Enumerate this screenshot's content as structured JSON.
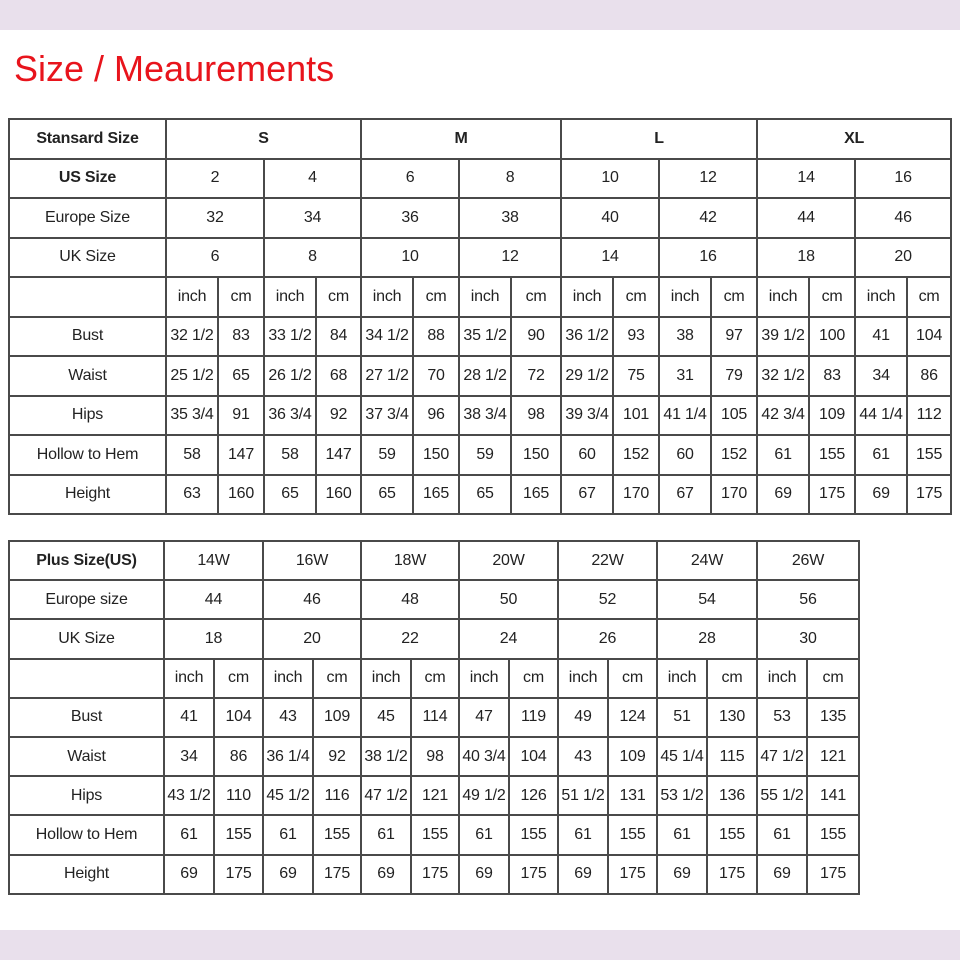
{
  "title": "Size / Meaurements",
  "standard_table": {
    "rows": [
      {
        "label": "Stansard Size",
        "bold": true,
        "span": 4,
        "cells": [
          "S",
          "M",
          "L",
          "XL"
        ]
      },
      {
        "label": "US Size",
        "bold": true,
        "span": 2,
        "cells": [
          "2",
          "4",
          "6",
          "8",
          "10",
          "12",
          "14",
          "16"
        ]
      },
      {
        "label": "Europe Size",
        "span": 2,
        "cells": [
          "32",
          "34",
          "36",
          "38",
          "40",
          "42",
          "44",
          "46"
        ]
      },
      {
        "label": "UK Size",
        "span": 2,
        "cells": [
          "6",
          "8",
          "10",
          "12",
          "14",
          "16",
          "18",
          "20"
        ]
      },
      {
        "label": "",
        "span": 1,
        "cells": [
          "inch",
          "cm",
          "inch",
          "cm",
          "inch",
          "cm",
          "inch",
          "cm",
          "inch",
          "cm",
          "inch",
          "cm",
          "inch",
          "cm",
          "inch",
          "cm"
        ]
      },
      {
        "label": "Bust",
        "span": 1,
        "cells": [
          "32 1/2",
          "83",
          "33 1/2",
          "84",
          "34 1/2",
          "88",
          "35 1/2",
          "90",
          "36 1/2",
          "93",
          "38",
          "97",
          "39 1/2",
          "100",
          "41",
          "104"
        ]
      },
      {
        "label": "Waist",
        "span": 1,
        "cells": [
          "25 1/2",
          "65",
          "26 1/2",
          "68",
          "27 1/2",
          "70",
          "28 1/2",
          "72",
          "29 1/2",
          "75",
          "31",
          "79",
          "32 1/2",
          "83",
          "34",
          "86"
        ]
      },
      {
        "label": "Hips",
        "span": 1,
        "cells": [
          "35 3/4",
          "91",
          "36 3/4",
          "92",
          "37 3/4",
          "96",
          "38 3/4",
          "98",
          "39 3/4",
          "101",
          "41 1/4",
          "105",
          "42 3/4",
          "109",
          "44 1/4",
          "112"
        ]
      },
      {
        "label": "Hollow to Hem",
        "span": 1,
        "cells": [
          "58",
          "147",
          "58",
          "147",
          "59",
          "150",
          "59",
          "150",
          "60",
          "152",
          "60",
          "152",
          "61",
          "155",
          "61",
          "155"
        ]
      },
      {
        "label": "Height",
        "span": 1,
        "cells": [
          "63",
          "160",
          "65",
          "160",
          "65",
          "165",
          "65",
          "165",
          "67",
          "170",
          "67",
          "170",
          "69",
          "175",
          "69",
          "175"
        ]
      }
    ]
  },
  "plus_table": {
    "rows": [
      {
        "label": "Plus Size(US)",
        "bold": true,
        "span": 2,
        "cells": [
          "14W",
          "16W",
          "18W",
          "20W",
          "22W",
          "24W",
          "26W"
        ]
      },
      {
        "label": "Europe size",
        "span": 2,
        "cells": [
          "44",
          "46",
          "48",
          "50",
          "52",
          "54",
          "56"
        ]
      },
      {
        "label": "UK Size",
        "span": 2,
        "cells": [
          "18",
          "20",
          "22",
          "24",
          "26",
          "28",
          "30"
        ]
      },
      {
        "label": "",
        "span": 1,
        "cells": [
          "inch",
          "cm",
          "inch",
          "cm",
          "inch",
          "cm",
          "inch",
          "cm",
          "inch",
          "cm",
          "inch",
          "cm",
          "inch",
          "cm"
        ]
      },
      {
        "label": "Bust",
        "span": 1,
        "cells": [
          "41",
          "104",
          "43",
          "109",
          "45",
          "114",
          "47",
          "119",
          "49",
          "124",
          "51",
          "130",
          "53",
          "135"
        ]
      },
      {
        "label": "Waist",
        "span": 1,
        "cells": [
          "34",
          "86",
          "36 1/4",
          "92",
          "38 1/2",
          "98",
          "40 3/4",
          "104",
          "43",
          "109",
          "45 1/4",
          "115",
          "47 1/2",
          "121"
        ]
      },
      {
        "label": "Hips",
        "span": 1,
        "cells": [
          "43 1/2",
          "110",
          "45 1/2",
          "116",
          "47 1/2",
          "121",
          "49 1/2",
          "126",
          "51 1/2",
          "131",
          "53 1/2",
          "136",
          "55 1/2",
          "141"
        ]
      },
      {
        "label": "Hollow to Hem",
        "span": 1,
        "cells": [
          "61",
          "155",
          "61",
          "155",
          "61",
          "155",
          "61",
          "155",
          "61",
          "155",
          "61",
          "155",
          "61",
          "155"
        ]
      },
      {
        "label": "Height",
        "span": 1,
        "cells": [
          "69",
          "175",
          "69",
          "175",
          "69",
          "175",
          "69",
          "175",
          "69",
          "175",
          "69",
          "175",
          "69",
          "175"
        ]
      }
    ]
  }
}
